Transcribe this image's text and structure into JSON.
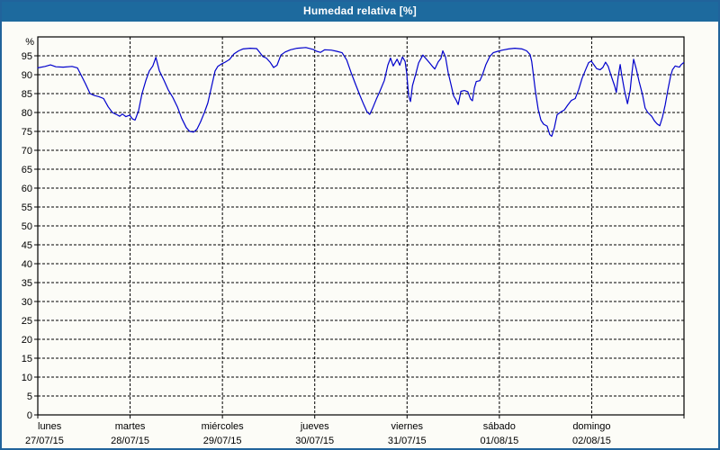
{
  "window": {
    "title": "Humedad relativa [%]"
  },
  "colors": {
    "title_bar": "#1d6a9e",
    "title_text": "#ffffff",
    "window_border": "#21639b",
    "background": "#fcfcf7",
    "plot_frame": "#000000",
    "gridline": "#000000",
    "line": "#0000cc"
  },
  "chart_data": {
    "type": "line",
    "title": "Humedad relativa [%]",
    "ylabel": "%",
    "xlabel": "",
    "ylim": [
      0,
      100
    ],
    "xlim_hours": [
      0,
      168
    ],
    "grid": "dashed",
    "legend": "none",
    "y_ticks": [
      0,
      5,
      10,
      15,
      20,
      25,
      30,
      35,
      40,
      45,
      50,
      55,
      60,
      65,
      70,
      75,
      80,
      85,
      90,
      95
    ],
    "x_ticks": [
      {
        "day": "lunes",
        "date": "27/07/15",
        "hour": 0
      },
      {
        "day": "martes",
        "date": "28/07/15",
        "hour": 24
      },
      {
        "day": "miércoles",
        "date": "29/07/15",
        "hour": 48
      },
      {
        "day": "jueves",
        "date": "30/07/15",
        "hour": 72
      },
      {
        "day": "viernes",
        "date": "31/07/15",
        "hour": 96
      },
      {
        "day": "sábado",
        "date": "01/08/15",
        "hour": 120
      },
      {
        "day": "domingo",
        "date": "02/08/15",
        "hour": 144
      }
    ],
    "series": [
      {
        "name": "Humedad relativa",
        "unit": "%",
        "color": "#0000cc",
        "points": [
          [
            0,
            91.8
          ],
          [
            1.9,
            92.2
          ],
          [
            3.3,
            92.6
          ],
          [
            4.7,
            92.1
          ],
          [
            6.6,
            92.0
          ],
          [
            8.9,
            92.2
          ],
          [
            10.3,
            91.8
          ],
          [
            11.2,
            90.0
          ],
          [
            12.4,
            87.6
          ],
          [
            13.6,
            85.0
          ],
          [
            14.7,
            84.5
          ],
          [
            15.9,
            84.2
          ],
          [
            17.1,
            83.7
          ],
          [
            18.3,
            81.5
          ],
          [
            19.4,
            80.0
          ],
          [
            20.6,
            79.4
          ],
          [
            21.3,
            79.0
          ],
          [
            22.0,
            79.6
          ],
          [
            22.9,
            78.9
          ],
          [
            23.9,
            79.3
          ],
          [
            24.6,
            78.3
          ],
          [
            25.3,
            78.0
          ],
          [
            26.2,
            80.5
          ],
          [
            27.1,
            85.0
          ],
          [
            28.1,
            88.5
          ],
          [
            29.0,
            91.0
          ],
          [
            29.9,
            92.3
          ],
          [
            30.7,
            94.6
          ],
          [
            31.6,
            91.0
          ],
          [
            32.8,
            88.5
          ],
          [
            33.9,
            86.0
          ],
          [
            35.1,
            84.0
          ],
          [
            36.3,
            81.5
          ],
          [
            37.4,
            78.5
          ],
          [
            38.6,
            76.0
          ],
          [
            39.5,
            75.0
          ],
          [
            40.5,
            74.8
          ],
          [
            41.4,
            75.6
          ],
          [
            42.3,
            77.5
          ],
          [
            43.3,
            80.0
          ],
          [
            44.2,
            82.5
          ],
          [
            45.2,
            87.0
          ],
          [
            46.1,
            91.0
          ],
          [
            46.8,
            92.2
          ],
          [
            47.7,
            92.8
          ],
          [
            48.7,
            93.3
          ],
          [
            49.8,
            94.0
          ],
          [
            51.0,
            95.5
          ],
          [
            52.2,
            96.3
          ],
          [
            53.3,
            96.8
          ],
          [
            55.2,
            97.0
          ],
          [
            56.9,
            96.9
          ],
          [
            57.6,
            96.0
          ],
          [
            58.5,
            94.8
          ],
          [
            59.4,
            94.4
          ],
          [
            60.4,
            93.3
          ],
          [
            61.3,
            91.9
          ],
          [
            62.2,
            92.5
          ],
          [
            63.2,
            95.2
          ],
          [
            64.3,
            96.0
          ],
          [
            65.7,
            96.6
          ],
          [
            67.4,
            97.0
          ],
          [
            69.7,
            97.2
          ],
          [
            71.6,
            96.7
          ],
          [
            72.5,
            96.2
          ],
          [
            73.5,
            95.9
          ],
          [
            74.6,
            96.6
          ],
          [
            76.3,
            96.5
          ],
          [
            77.7,
            96.2
          ],
          [
            79.1,
            95.8
          ],
          [
            80.3,
            93.9
          ],
          [
            81.4,
            90.7
          ],
          [
            82.6,
            87.5
          ],
          [
            83.8,
            84.4
          ],
          [
            84.7,
            82.2
          ],
          [
            85.6,
            80.2
          ],
          [
            86.3,
            79.5
          ],
          [
            87.0,
            81.0
          ],
          [
            88.0,
            83.5
          ],
          [
            88.9,
            85.5
          ],
          [
            90.1,
            88.5
          ],
          [
            91.0,
            92.5
          ],
          [
            91.7,
            94.4
          ],
          [
            92.4,
            92.3
          ],
          [
            93.4,
            94.1
          ],
          [
            94.1,
            92.5
          ],
          [
            94.8,
            94.7
          ],
          [
            95.5,
            93.5
          ],
          [
            95.9,
            90.4
          ],
          [
            96.4,
            84.5
          ],
          [
            96.9,
            82.9
          ],
          [
            97.4,
            87.1
          ],
          [
            98.3,
            90.3
          ],
          [
            99.0,
            93.1
          ],
          [
            100.1,
            95.2
          ],
          [
            101.3,
            93.8
          ],
          [
            102.5,
            92.3
          ],
          [
            103.2,
            91.5
          ],
          [
            104.1,
            93.4
          ],
          [
            104.8,
            94.3
          ],
          [
            105.3,
            96.3
          ],
          [
            106.0,
            94.7
          ],
          [
            106.7,
            90.5
          ],
          [
            107.4,
            87.5
          ],
          [
            108.1,
            84.4
          ],
          [
            108.8,
            83.2
          ],
          [
            109.3,
            82.1
          ],
          [
            110.0,
            85.6
          ],
          [
            110.9,
            85.8
          ],
          [
            111.8,
            85.5
          ],
          [
            112.5,
            83.6
          ],
          [
            113.0,
            83.1
          ],
          [
            113.5,
            86.5
          ],
          [
            114.0,
            88.2
          ],
          [
            114.9,
            88.4
          ],
          [
            115.6,
            90.0
          ],
          [
            116.5,
            92.7
          ],
          [
            117.5,
            94.8
          ],
          [
            118.4,
            95.8
          ],
          [
            119.6,
            96.2
          ],
          [
            120.8,
            96.5
          ],
          [
            122.4,
            96.8
          ],
          [
            124.0,
            97.0
          ],
          [
            125.9,
            96.8
          ],
          [
            127.1,
            96.3
          ],
          [
            128.0,
            95.3
          ],
          [
            128.4,
            93.5
          ],
          [
            129.4,
            85.5
          ],
          [
            130.1,
            80.8
          ],
          [
            130.8,
            78.0
          ],
          [
            131.5,
            76.9
          ],
          [
            132.4,
            76.4
          ],
          [
            133.1,
            74.2
          ],
          [
            133.6,
            73.7
          ],
          [
            134.3,
            76.0
          ],
          [
            135.0,
            79.4
          ],
          [
            135.9,
            80.1
          ],
          [
            136.9,
            80.7
          ],
          [
            137.8,
            82.0
          ],
          [
            138.7,
            83.2
          ],
          [
            139.7,
            83.7
          ],
          [
            140.6,
            86.0
          ],
          [
            141.5,
            89.0
          ],
          [
            142.5,
            91.5
          ],
          [
            143.2,
            93.2
          ],
          [
            143.9,
            93.6
          ],
          [
            144.6,
            92.6
          ],
          [
            145.3,
            91.6
          ],
          [
            146.2,
            91.3
          ],
          [
            146.9,
            91.9
          ],
          [
            147.6,
            93.3
          ],
          [
            148.3,
            92.2
          ],
          [
            149.0,
            89.9
          ],
          [
            150.0,
            86.9
          ],
          [
            150.4,
            85.3
          ],
          [
            150.9,
            89.5
          ],
          [
            151.4,
            92.7
          ],
          [
            151.8,
            89.9
          ],
          [
            152.5,
            85.9
          ],
          [
            153.3,
            82.3
          ],
          [
            154.0,
            85.9
          ],
          [
            154.4,
            89.9
          ],
          [
            154.9,
            94.1
          ],
          [
            155.6,
            91.5
          ],
          [
            156.3,
            88.3
          ],
          [
            157.2,
            84.8
          ],
          [
            157.9,
            81.2
          ],
          [
            158.6,
            80.0
          ],
          [
            159.6,
            79.0
          ],
          [
            160.3,
            77.8
          ],
          [
            161.0,
            77.0
          ],
          [
            161.7,
            76.5
          ],
          [
            162.4,
            78.8
          ],
          [
            163.1,
            82.0
          ],
          [
            163.8,
            86.0
          ],
          [
            164.5,
            89.5
          ],
          [
            165.0,
            91.3
          ],
          [
            165.7,
            92.3
          ],
          [
            166.4,
            92.1
          ],
          [
            166.8,
            92.0
          ],
          [
            167.3,
            92.7
          ],
          [
            167.9,
            93.2
          ]
        ]
      }
    ]
  }
}
